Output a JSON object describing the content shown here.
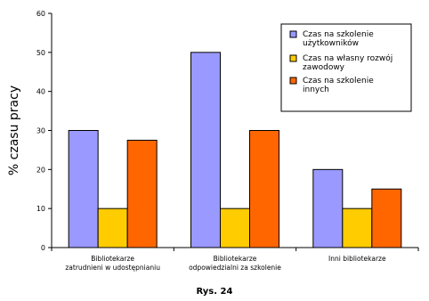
{
  "chart_data": {
    "type": "bar",
    "categories": [
      [
        "Bibliotekarze",
        "zatrudnieni w udostępnianiu"
      ],
      [
        "Bibliotekarze",
        "odpowiedzialni za szkolenie"
      ],
      [
        "Inni bibliotekarze"
      ]
    ],
    "series": [
      {
        "name": [
          "Czas na szkolenie",
          "użytkowników"
        ],
        "values": [
          30,
          50,
          20
        ],
        "color": "#9999ff"
      },
      {
        "name": [
          "Czas na własny rozwój",
          "zawodowy"
        ],
        "values": [
          10,
          10,
          10
        ],
        "color": "#ffcc00"
      },
      {
        "name": [
          "Czas na szkolenie",
          "innych"
        ],
        "values": [
          27.5,
          30,
          15
        ],
        "color": "#ff6600"
      }
    ],
    "ylabel": "% czasu pracy",
    "ylim": [
      0,
      60
    ],
    "yticks": [
      0,
      10,
      20,
      30,
      40,
      50,
      60
    ],
    "grid": false,
    "legend": "top-right"
  },
  "caption": "Rys. 24"
}
